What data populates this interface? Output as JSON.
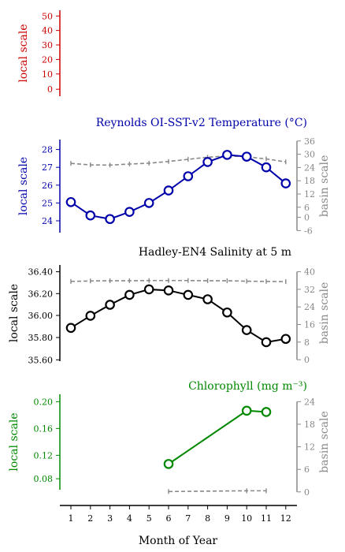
{
  "x_axis": {
    "label": "Month of Year",
    "ticks": [
      1,
      2,
      3,
      4,
      5,
      6,
      7,
      8,
      9,
      10,
      11,
      12
    ]
  },
  "chart_data": [
    {
      "type": "line",
      "title": "",
      "ylabel": "local scale",
      "color": "#cc0000",
      "ylim": [
        -5,
        55
      ],
      "yticks": [
        "50",
        "40",
        "30",
        "20",
        "10",
        "0"
      ],
      "series": []
    },
    {
      "type": "line",
      "title": "Reynolds OI-SST-v2 Temperature (°C)",
      "ylabel": "local scale",
      "y2label": "basin scale",
      "color": "#0000aa",
      "ylim": [
        23.5,
        28.4
      ],
      "yticks": [
        "28",
        "27",
        "26",
        "25",
        "24"
      ],
      "y2lim": [
        -6,
        36
      ],
      "y2ticks": [
        "36",
        "30",
        "24",
        "18",
        "12",
        "6",
        "0",
        "-6"
      ],
      "x": [
        1,
        2,
        3,
        4,
        5,
        6,
        7,
        8,
        9,
        10,
        11,
        12
      ],
      "series": [
        {
          "axis": "left",
          "values": [
            25.05,
            24.3,
            24.1,
            24.5,
            25.0,
            25.7,
            26.5,
            27.3,
            27.7,
            27.6,
            27.0,
            26.1
          ]
        },
        {
          "axis": "right",
          "values": [
            25.5,
            24.8,
            24.7,
            25.2,
            25.6,
            26.4,
            27.4,
            28.4,
            29.0,
            28.6,
            27.6,
            26.2
          ]
        }
      ]
    },
    {
      "type": "line",
      "title": "Hadley-EN4 Salinity at 5 m",
      "ylabel": "local scale",
      "y2label": "basin scale",
      "color": "#000000",
      "ylim": [
        35.6,
        36.4
      ],
      "yticks": [
        "36.40",
        "36.20",
        "36.00",
        "35.80",
        "35.60"
      ],
      "y2lim": [
        0,
        40
      ],
      "y2ticks": [
        "40",
        "32",
        "24",
        "16",
        "8",
        "0"
      ],
      "x": [
        1,
        2,
        3,
        4,
        5,
        6,
        7,
        8,
        9,
        10,
        11,
        12
      ],
      "series": [
        {
          "axis": "left",
          "values": [
            35.89,
            36.0,
            36.1,
            36.19,
            36.24,
            36.23,
            36.19,
            36.15,
            36.03,
            35.87,
            35.76,
            35.79
          ]
        },
        {
          "axis": "right",
          "values": [
            35.6,
            35.8,
            35.9,
            35.9,
            36.0,
            36.0,
            36.0,
            35.9,
            35.9,
            35.7,
            35.6,
            35.5
          ]
        }
      ]
    },
    {
      "type": "line",
      "title": "Chlorophyll (mg m⁻³)",
      "ylabel": "local scale",
      "y2label": "basin scale",
      "color": "#008800",
      "ylim": [
        0.07,
        0.2
      ],
      "yticks": [
        "0.20",
        "0.16",
        "0.12",
        "0.08"
      ],
      "y2lim": [
        0,
        24
      ],
      "y2ticks": [
        "24",
        "18",
        "12",
        "6",
        "0"
      ],
      "x": [
        6,
        10,
        11
      ],
      "series": [
        {
          "axis": "left",
          "values": [
            0.103,
            0.186,
            0.184
          ]
        },
        {
          "axis": "right",
          "values": [
            0.1,
            0.3,
            0.3
          ]
        }
      ]
    }
  ]
}
